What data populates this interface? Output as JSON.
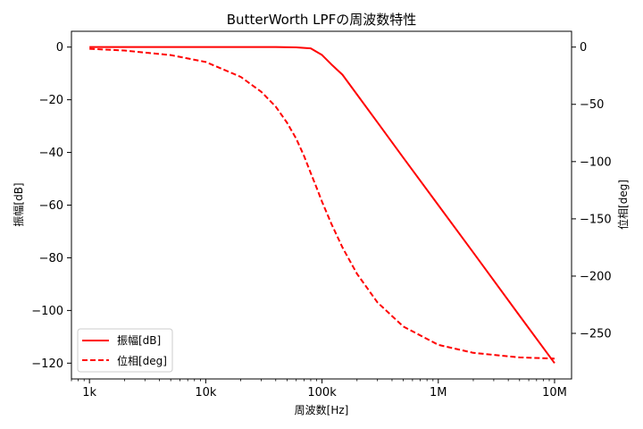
{
  "chart_data": {
    "type": "line",
    "title": "ButterWorth LPFの周波数特性",
    "xlabel": "周波数[Hz]",
    "ylabel_left": "振幅[dB]",
    "ylabel_right": "位相[deg]",
    "xscale": "log",
    "xlim": [
      700,
      14000000
    ],
    "ylim_left": [
      -126,
      6
    ],
    "ylim_right": [
      -289.8,
      13.8
    ],
    "x_ticks": [
      {
        "value": 1000,
        "label": "1k"
      },
      {
        "value": 10000,
        "label": "10k"
      },
      {
        "value": 100000,
        "label": "100k"
      },
      {
        "value": 1000000,
        "label": "1M"
      },
      {
        "value": 10000000,
        "label": "10M"
      }
    ],
    "y_ticks_left": [
      {
        "value": 0,
        "label": "0"
      },
      {
        "value": -20,
        "label": "−20"
      },
      {
        "value": -40,
        "label": "−40"
      },
      {
        "value": -60,
        "label": "−60"
      },
      {
        "value": -80,
        "label": "−80"
      },
      {
        "value": -100,
        "label": "−100"
      },
      {
        "value": -120,
        "label": "−120"
      }
    ],
    "y_ticks_right": [
      {
        "value": 0,
        "label": "0"
      },
      {
        "value": -50,
        "label": "−50"
      },
      {
        "value": -100,
        "label": "−100"
      },
      {
        "value": -150,
        "label": "−150"
      },
      {
        "value": -200,
        "label": "−200"
      },
      {
        "value": -250,
        "label": "−250"
      }
    ],
    "series": [
      {
        "name": "振幅[dB]",
        "axis": "left",
        "style": "solid",
        "color": "#ff0000",
        "x": [
          1000,
          5000,
          10000,
          20000,
          40000,
          60000,
          80000,
          100000,
          120000,
          150000,
          200000,
          300000,
          500000,
          1000000,
          2000000,
          5000000,
          10000000
        ],
        "y": [
          0,
          0,
          0,
          0,
          0,
          -0.1,
          -0.5,
          -3,
          -6.5,
          -10.5,
          -18,
          -28.6,
          -42,
          -60,
          -78,
          -102,
          -120
        ]
      },
      {
        "name": "位相[deg]",
        "axis": "right",
        "style": "dashed",
        "color": "#ff0000",
        "x": [
          1000,
          2000,
          5000,
          10000,
          20000,
          30000,
          40000,
          50000,
          60000,
          70000,
          80000,
          90000,
          100000,
          120000,
          150000,
          200000,
          300000,
          500000,
          1000000,
          2000000,
          5000000,
          10000000
        ],
        "y": [
          -1.5,
          -3,
          -7,
          -13,
          -26,
          -39,
          -52,
          -66,
          -80,
          -95,
          -110,
          -123,
          -135,
          -154,
          -175,
          -198,
          -223,
          -244,
          -260,
          -267,
          -271,
          -272
        ]
      }
    ],
    "legend_position": "lower-left",
    "grid": false
  }
}
